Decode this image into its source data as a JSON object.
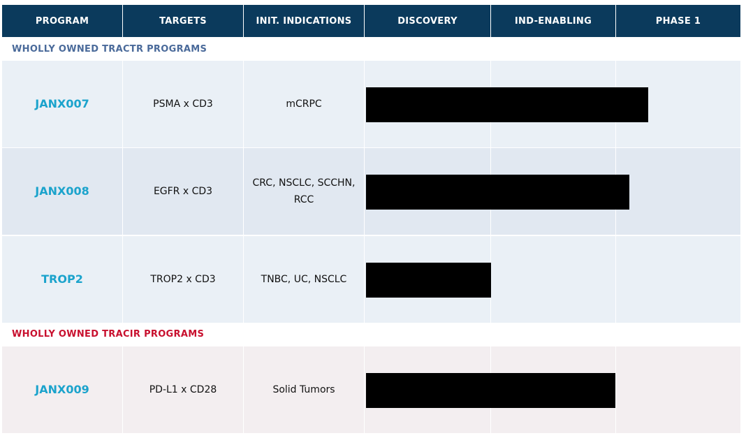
{
  "header": {
    "columns": [
      "PROGRAM",
      "TARGETS",
      "INIT. INDICATIONS",
      "DISCOVERY",
      "IND-ENABLING",
      "PHASE 1"
    ]
  },
  "sections": [
    {
      "title": "WHOLLY OWNED TRACTR PROGRAMS",
      "rows": [
        {
          "program": "JANX007",
          "targets": "PSMA x CD3",
          "indications": "mCRPC"
        },
        {
          "program": "JANX008",
          "targets": "EGFR x CD3",
          "indications": "CRC, NSCLC, SCCHN, RCC"
        },
        {
          "program": "TROP2",
          "targets": "TROP2 x CD3",
          "indications": "TNBC, UC, NSCLC"
        }
      ]
    },
    {
      "title": "WHOLLY OWNED TRACIR PROGRAMS",
      "rows": [
        {
          "program": "JANX009",
          "targets": "PD-L1 x CD28",
          "indications": "Solid Tumors"
        }
      ]
    }
  ]
}
